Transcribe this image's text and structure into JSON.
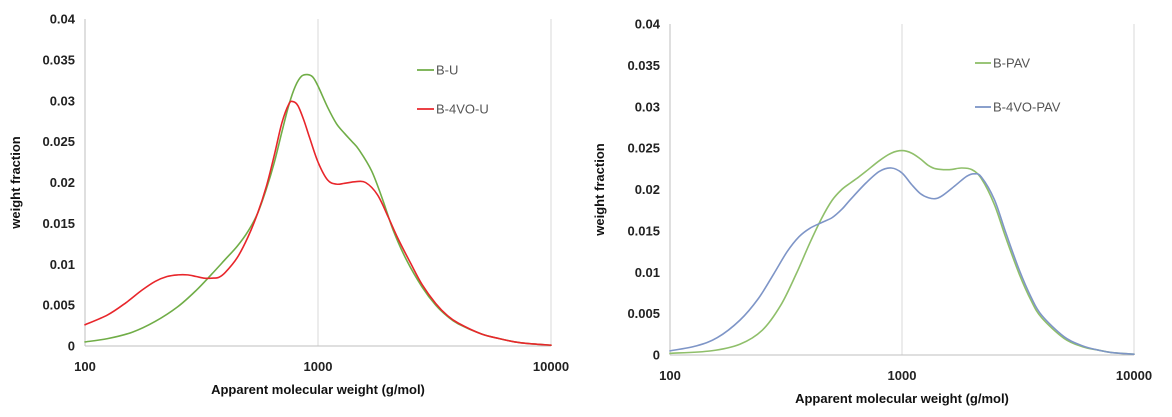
{
  "chart_data": [
    {
      "type": "line",
      "title": "",
      "xlabel": "Apparent molecular weight (g/mol)",
      "ylabel": "weight fraction",
      "x_scale": "log",
      "xlim": [
        100,
        10000
      ],
      "ylim": [
        0,
        0.04
      ],
      "x_ticks": [
        100,
        1000,
        10000
      ],
      "x_tick_labels": [
        "100",
        "1000",
        "10000"
      ],
      "y_ticks": [
        0,
        0.005,
        0.01,
        0.015,
        0.02,
        0.025,
        0.03,
        0.035,
        0.04
      ],
      "y_tick_labels": [
        "0",
        "0.005",
        "0.01",
        "0.015",
        "0.02",
        "0.025",
        "0.03",
        "0.035",
        "0.04"
      ],
      "grid": "major vertical",
      "legend_position": "top-right",
      "series": [
        {
          "name": "B-U",
          "color": "#70ad47",
          "points": [
            [
              100,
              0.0005
            ],
            [
              125,
              0.0009
            ],
            [
              160,
              0.0017
            ],
            [
              200,
              0.003
            ],
            [
              250,
              0.0048
            ],
            [
              300,
              0.0068
            ],
            [
              350,
              0.0088
            ],
            [
              400,
              0.0106
            ],
            [
              450,
              0.0122
            ],
            [
              500,
              0.014
            ],
            [
              550,
              0.0162
            ],
            [
              600,
              0.0192
            ],
            [
              650,
              0.0225
            ],
            [
              700,
              0.0262
            ],
            [
              750,
              0.0295
            ],
            [
              800,
              0.0318
            ],
            [
              850,
              0.033
            ],
            [
              900,
              0.0332
            ],
            [
              950,
              0.0329
            ],
            [
              1000,
              0.0318
            ],
            [
              1100,
              0.0292
            ],
            [
              1200,
              0.0272
            ],
            [
              1300,
              0.026
            ],
            [
              1400,
              0.025
            ],
            [
              1500,
              0.024
            ],
            [
              1700,
              0.0214
            ],
            [
              1900,
              0.0178
            ],
            [
              2100,
              0.0142
            ],
            [
              2400,
              0.0105
            ],
            [
              2800,
              0.0072
            ],
            [
              3200,
              0.005
            ],
            [
              3600,
              0.0036
            ],
            [
              4000,
              0.0027
            ],
            [
              5000,
              0.0015
            ],
            [
              6000,
              0.0009
            ],
            [
              7000,
              0.0005
            ],
            [
              8000,
              0.0003
            ],
            [
              10000,
              0.0001
            ]
          ]
        },
        {
          "name": "B-4VO-U",
          "color": "#e8262b",
          "points": [
            [
              100,
              0.0026
            ],
            [
              125,
              0.0038
            ],
            [
              150,
              0.0053
            ],
            [
              175,
              0.0068
            ],
            [
              200,
              0.0079
            ],
            [
              225,
              0.0085
            ],
            [
              250,
              0.0087
            ],
            [
              275,
              0.0087
            ],
            [
              300,
              0.0085
            ],
            [
              325,
              0.0083
            ],
            [
              350,
              0.0083
            ],
            [
              375,
              0.0084
            ],
            [
              400,
              0.009
            ],
            [
              450,
              0.0108
            ],
            [
              500,
              0.0133
            ],
            [
              550,
              0.0162
            ],
            [
              600,
              0.0195
            ],
            [
              650,
              0.0234
            ],
            [
              700,
              0.0273
            ],
            [
              750,
              0.0296
            ],
            [
              780,
              0.0299
            ],
            [
              820,
              0.0294
            ],
            [
              870,
              0.0276
            ],
            [
              920,
              0.0255
            ],
            [
              1000,
              0.0225
            ],
            [
              1100,
              0.0203
            ],
            [
              1200,
              0.0198
            ],
            [
              1300,
              0.0199
            ],
            [
              1450,
              0.0201
            ],
            [
              1600,
              0.02
            ],
            [
              1800,
              0.0185
            ],
            [
              2000,
              0.0158
            ],
            [
              2200,
              0.0132
            ],
            [
              2500,
              0.0101
            ],
            [
              2800,
              0.0075
            ],
            [
              3200,
              0.0052
            ],
            [
              3600,
              0.0037
            ],
            [
              4000,
              0.0028
            ],
            [
              5000,
              0.0015
            ],
            [
              6000,
              0.0009
            ],
            [
              7000,
              0.0005
            ],
            [
              8000,
              0.0003
            ],
            [
              10000,
              0.0001
            ]
          ]
        }
      ]
    },
    {
      "type": "line",
      "title": "",
      "xlabel": "Apparent molecular weight (g/mol)",
      "ylabel": "weight fraction",
      "x_scale": "log",
      "xlim": [
        100,
        10000
      ],
      "ylim": [
        0,
        0.04
      ],
      "x_ticks": [
        100,
        1000,
        10000
      ],
      "x_tick_labels": [
        "100",
        "1000",
        "10000"
      ],
      "y_ticks": [
        0,
        0.005,
        0.01,
        0.015,
        0.02,
        0.025,
        0.03,
        0.035,
        0.04
      ],
      "y_tick_labels": [
        "0",
        "0.005",
        "0.01",
        "0.015",
        "0.02",
        "0.025",
        "0.03",
        "0.035",
        "0.04"
      ],
      "grid": "major vertical",
      "legend_position": "top-right",
      "series": [
        {
          "name": "B-PAV",
          "color": "#8fbf6a",
          "points": [
            [
              100,
              0.0002
            ],
            [
              150,
              0.0005
            ],
            [
              200,
              0.0013
            ],
            [
              250,
              0.003
            ],
            [
              300,
              0.006
            ],
            [
              350,
              0.0098
            ],
            [
              400,
              0.0135
            ],
            [
              450,
              0.0165
            ],
            [
              500,
              0.0187
            ],
            [
              550,
              0.02
            ],
            [
              600,
              0.0208
            ],
            [
              650,
              0.0215
            ],
            [
              700,
              0.0222
            ],
            [
              800,
              0.0235
            ],
            [
              900,
              0.0244
            ],
            [
              1000,
              0.0247
            ],
            [
              1100,
              0.0244
            ],
            [
              1200,
              0.0237
            ],
            [
              1300,
              0.0229
            ],
            [
              1400,
              0.0225
            ],
            [
              1600,
              0.0224
            ],
            [
              1800,
              0.0226
            ],
            [
              2000,
              0.0224
            ],
            [
              2200,
              0.0213
            ],
            [
              2500,
              0.0182
            ],
            [
              2800,
              0.0142
            ],
            [
              3200,
              0.0098
            ],
            [
              3600,
              0.0066
            ],
            [
              4000,
              0.0045
            ],
            [
              5000,
              0.002
            ],
            [
              6000,
              0.001
            ],
            [
              7000,
              0.0006
            ],
            [
              8000,
              0.0003
            ],
            [
              10000,
              0.0001
            ]
          ]
        },
        {
          "name": "B-4VO-PAV",
          "color": "#7e95c7",
          "points": [
            [
              100,
              0.0005
            ],
            [
              130,
              0.0011
            ],
            [
              160,
              0.0021
            ],
            [
              200,
              0.0042
            ],
            [
              240,
              0.0068
            ],
            [
              280,
              0.0098
            ],
            [
              320,
              0.0125
            ],
            [
              360,
              0.0143
            ],
            [
              400,
              0.0153
            ],
            [
              450,
              0.016
            ],
            [
              500,
              0.0166
            ],
            [
              550,
              0.0176
            ],
            [
              600,
              0.0188
            ],
            [
              700,
              0.0208
            ],
            [
              800,
              0.0222
            ],
            [
              900,
              0.0226
            ],
            [
              1000,
              0.022
            ],
            [
              1100,
              0.0206
            ],
            [
              1200,
              0.0195
            ],
            [
              1300,
              0.019
            ],
            [
              1400,
              0.0189
            ],
            [
              1500,
              0.0193
            ],
            [
              1700,
              0.0205
            ],
            [
              1900,
              0.0216
            ],
            [
              2050,
              0.0219
            ],
            [
              2200,
              0.0215
            ],
            [
              2500,
              0.0188
            ],
            [
              2800,
              0.0148
            ],
            [
              3200,
              0.0103
            ],
            [
              3600,
              0.007
            ],
            [
              4000,
              0.0048
            ],
            [
              5000,
              0.0022
            ],
            [
              6000,
              0.0011
            ],
            [
              7000,
              0.0006
            ],
            [
              8000,
              0.0003
            ],
            [
              10000,
              0.0001
            ]
          ]
        }
      ]
    }
  ]
}
